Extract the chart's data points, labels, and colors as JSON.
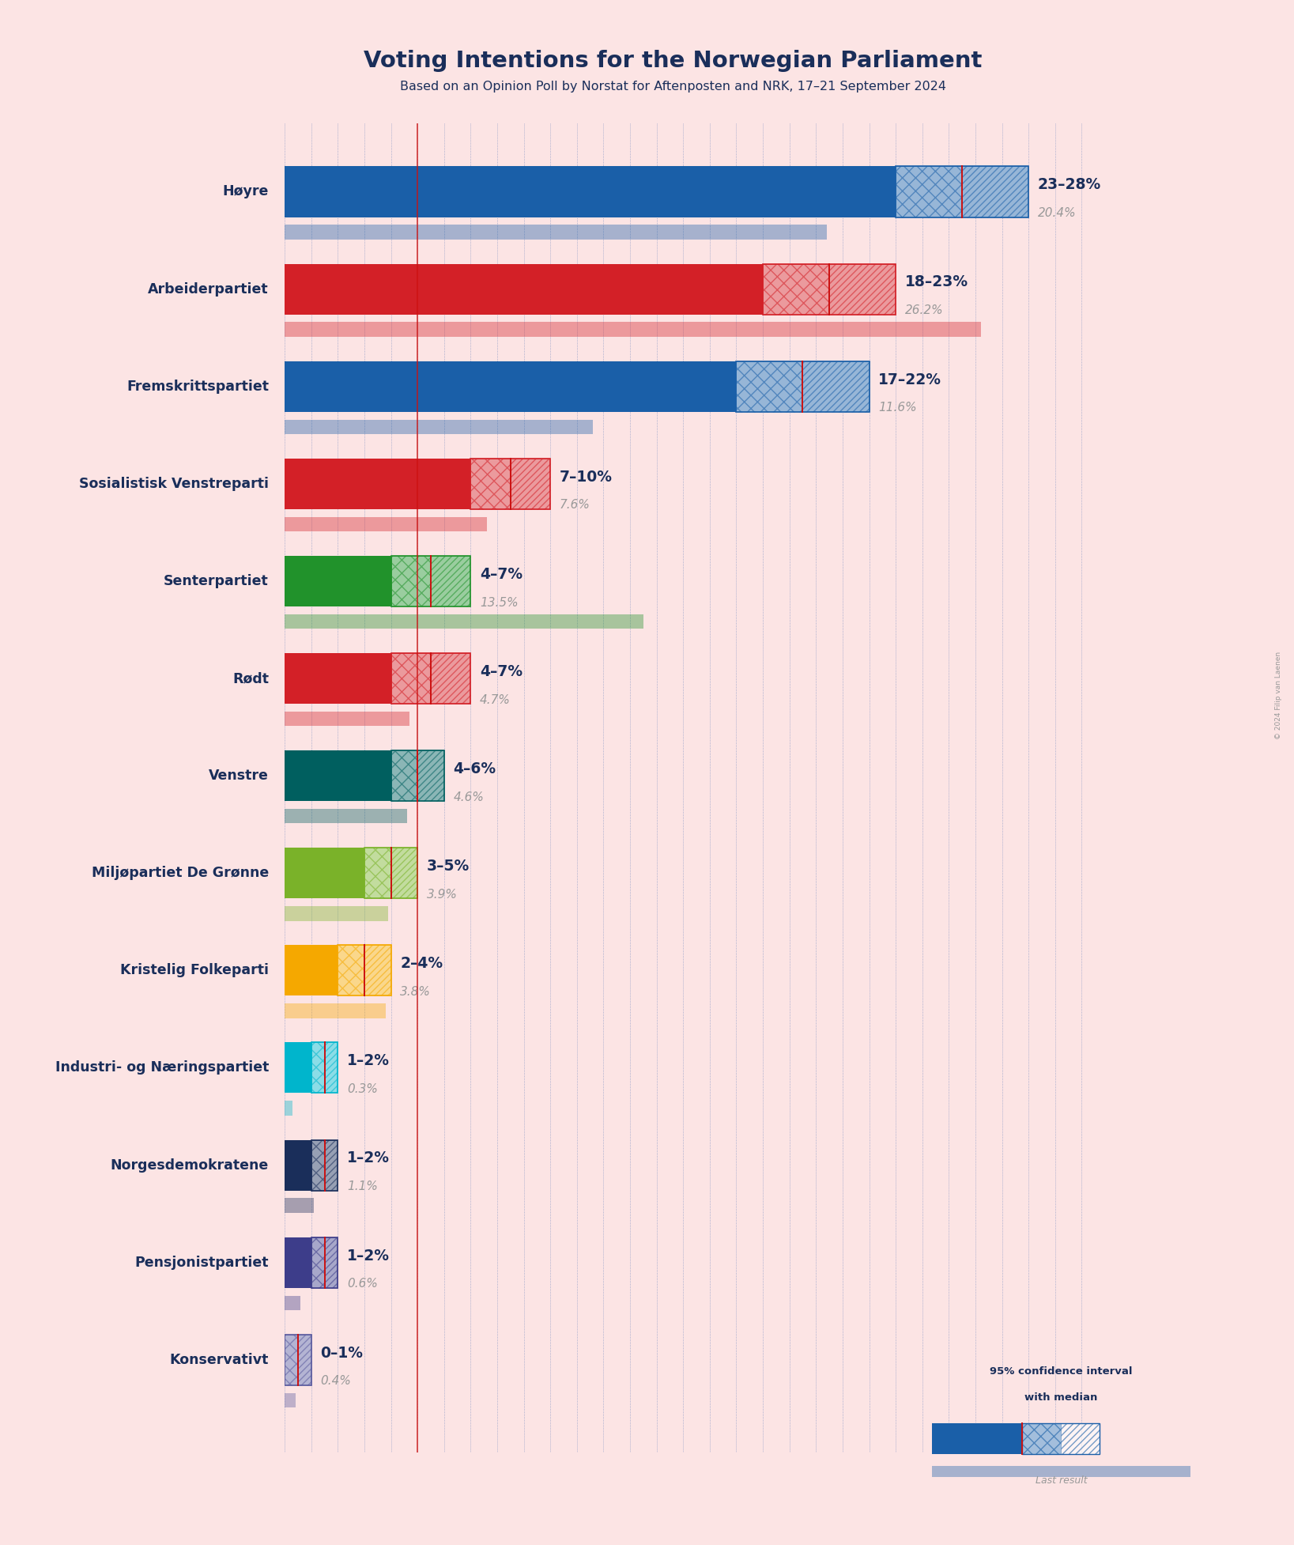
{
  "title": "Voting Intentions for the Norwegian Parliament",
  "subtitle": "Based on an Opinion Poll by Norstat for Aftenposten and NRK, 17–21 September 2024",
  "background_color": "#fce4e4",
  "parties": [
    {
      "name": "Høyre",
      "color": "#1a5fa8",
      "low": 23,
      "high": 28,
      "median": 25.5,
      "last": 20.4
    },
    {
      "name": "Arbeiderpartiet",
      "color": "#d32027",
      "low": 18,
      "high": 23,
      "median": 20.5,
      "last": 26.2
    },
    {
      "name": "Fremskrittspartiet",
      "color": "#1a5fa8",
      "low": 17,
      "high": 22,
      "median": 19.5,
      "last": 11.6
    },
    {
      "name": "Sosialistisk Venstreparti",
      "color": "#d32027",
      "low": 7,
      "high": 10,
      "median": 8.5,
      "last": 7.6
    },
    {
      "name": "Senterpartiet",
      "color": "#21922b",
      "low": 4,
      "high": 7,
      "median": 5.5,
      "last": 13.5
    },
    {
      "name": "Rødt",
      "color": "#d32027",
      "low": 4,
      "high": 7,
      "median": 5.5,
      "last": 4.7
    },
    {
      "name": "Venstre",
      "color": "#005f5f",
      "low": 4,
      "high": 6,
      "median": 5.0,
      "last": 4.6
    },
    {
      "name": "Miljøpartiet De Grønne",
      "color": "#7ab229",
      "low": 3,
      "high": 5,
      "median": 4.0,
      "last": 3.9
    },
    {
      "name": "Kristelig Folkeparti",
      "color": "#f5a800",
      "low": 2,
      "high": 4,
      "median": 3.0,
      "last": 3.8
    },
    {
      "name": "Industri- og Næringspartiet",
      "color": "#00b5cc",
      "low": 1,
      "high": 2,
      "median": 1.5,
      "last": 0.3
    },
    {
      "name": "Norgesdemokratene",
      "color": "#1a2e5a",
      "low": 1,
      "high": 2,
      "median": 1.5,
      "last": 1.1
    },
    {
      "name": "Pensjonistpartiet",
      "color": "#3d3d8a",
      "low": 1,
      "high": 2,
      "median": 1.5,
      "last": 0.6
    },
    {
      "name": "Konservativt",
      "color": "#5a5a9e",
      "low": 0,
      "high": 1,
      "median": 0.5,
      "last": 0.4
    }
  ],
  "range_labels": [
    "23–28%",
    "18–23%",
    "17–22%",
    "7–10%",
    "4–7%",
    "4–7%",
    "4–6%",
    "3–5%",
    "2–4%",
    "1–2%",
    "1–2%",
    "1–2%",
    "0–1%"
  ],
  "xmax": 30,
  "median_line_color": "#cc1111",
  "dotted_grid_color": "#2255aa",
  "title_color": "#1a2e5a",
  "label_color": "#1a2e5a",
  "range_label_color": "#1a2e5a",
  "last_result_label_color": "#999999",
  "copyright": "© 2024 Filip van Laenen"
}
